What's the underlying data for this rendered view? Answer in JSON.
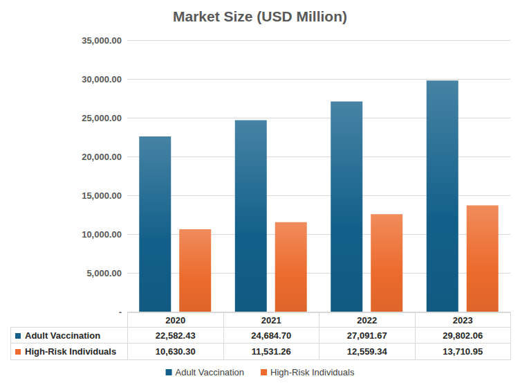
{
  "chart_data": {
    "type": "bar",
    "title": "Market Size (USD Million)",
    "categories": [
      "2020",
      "2021",
      "2022",
      "2023"
    ],
    "series": [
      {
        "name": "Adult Vaccination",
        "color": "#12608a",
        "values": [
          22582.43,
          24684.7,
          27091.67,
          29802.06
        ],
        "value_labels": [
          "22,582.43",
          "24,684.70",
          "27,091.67",
          "29,802.06"
        ]
      },
      {
        "name": "High-Risk Individuals",
        "color": "#ec6b2d",
        "values": [
          10630.3,
          11531.26,
          12559.34,
          13710.95
        ],
        "value_labels": [
          "10,630.30",
          "11,531.26",
          "12,559.34",
          "13,710.95"
        ]
      }
    ],
    "ylim": [
      0,
      35000
    ],
    "yticks": [
      {
        "value": 0,
        "label": "-"
      },
      {
        "value": 5000,
        "label": "5,000.00"
      },
      {
        "value": 10000,
        "label": "10,000.00"
      },
      {
        "value": 15000,
        "label": "15,000.00"
      },
      {
        "value": 20000,
        "label": "20,000.00"
      },
      {
        "value": 25000,
        "label": "25,000.00"
      },
      {
        "value": 30000,
        "label": "30,000.00"
      },
      {
        "value": 35000,
        "label": "35,000.00"
      }
    ],
    "grid": true,
    "legend": "bottom"
  }
}
